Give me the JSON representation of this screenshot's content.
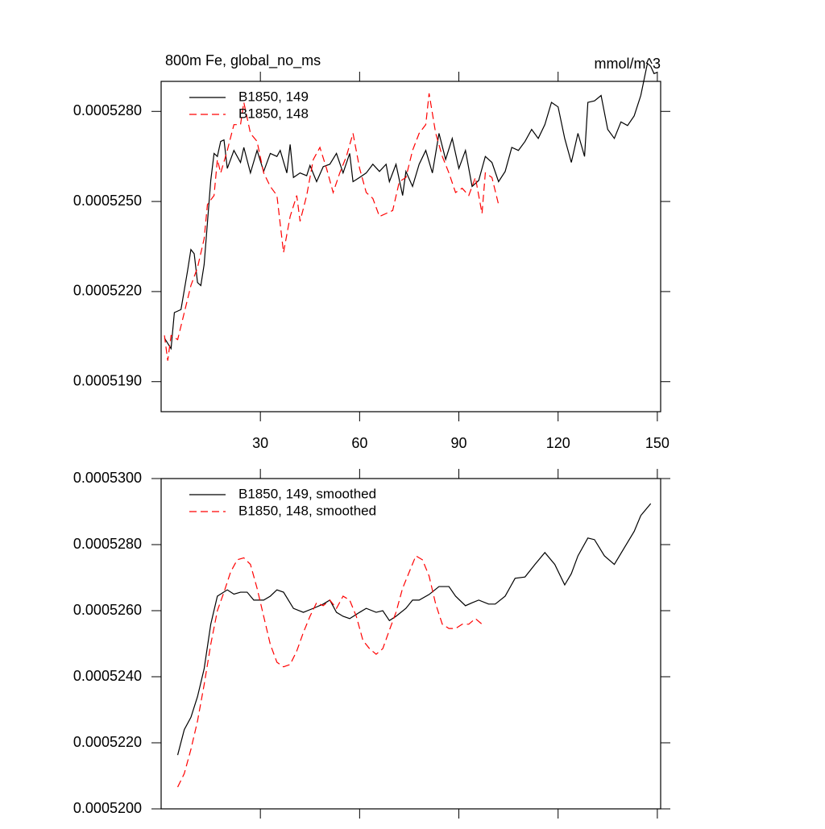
{
  "chart_data": [
    {
      "type": "line",
      "title": "800m Fe, global_no_ms",
      "right_title": "mmol/m^3",
      "xlim": [
        0,
        151
      ],
      "xticks": [
        30,
        60,
        90,
        120,
        150
      ],
      "xtick_labels": true,
      "ylim": [
        0.000518,
        0.000529
      ],
      "yticks": [
        {
          "value": 0.000519,
          "label": "0.0005190"
        },
        {
          "value": 0.000522,
          "label": "0.0005220"
        },
        {
          "value": 0.000525,
          "label": "0.0005250"
        },
        {
          "value": 0.000528,
          "label": "0.0005280"
        }
      ],
      "legend": "upper left",
      "series": [
        {
          "name": "B1850, 149",
          "color": "#000000",
          "dash": "solid",
          "x": [
            1,
            3,
            4,
            6,
            8,
            9,
            10,
            11,
            12,
            13,
            15,
            16,
            17,
            18,
            19,
            20,
            21,
            22,
            24,
            25,
            27,
            29,
            31,
            33,
            35,
            36,
            38,
            39,
            40,
            42,
            44,
            45,
            47,
            49,
            51,
            53,
            55,
            57,
            58,
            60,
            62,
            64,
            66,
            68,
            69,
            71,
            73,
            74,
            76,
            78,
            80,
            82,
            84,
            86,
            88,
            90,
            92,
            94,
            96,
            98,
            100,
            102,
            104,
            106,
            108,
            110,
            112,
            114,
            116,
            118,
            120,
            122,
            124,
            126,
            128,
            129,
            131,
            133,
            135,
            137,
            139,
            141,
            143,
            145,
            147,
            148,
            149,
            150
          ],
          "values": [
            0.00052045,
            0.0005201,
            0.0005213,
            0.0005214,
            0.0005227,
            0.0005234,
            0.00052326,
            0.0005223,
            0.0005222,
            0.0005229,
            0.0005257,
            0.0005266,
            0.0005265,
            0.000527,
            0.00052705,
            0.0005261,
            0.0005264,
            0.0005267,
            0.0005263,
            0.0005268,
            0.00052595,
            0.0005267,
            0.000526,
            0.0005266,
            0.0005265,
            0.0005267,
            0.00052595,
            0.0005269,
            0.0005258,
            0.00052595,
            0.00052586,
            0.0005262,
            0.00052566,
            0.00052616,
            0.00052624,
            0.0005266,
            0.00052595,
            0.0005266,
            0.00052566,
            0.0005258,
            0.00052595,
            0.00052624,
            0.000526,
            0.00052624,
            0.00052566,
            0.00052624,
            0.0005252,
            0.000526,
            0.0005255,
            0.00052624,
            0.0005267,
            0.00052595,
            0.00052727,
            0.0005264,
            0.0005271,
            0.0005261,
            0.0005267,
            0.0005255,
            0.0005257,
            0.0005265,
            0.0005263,
            0.00052566,
            0.000526,
            0.0005268,
            0.0005267,
            0.000527,
            0.0005274,
            0.0005271,
            0.00052756,
            0.0005283,
            0.00052815,
            0.0005271,
            0.0005263,
            0.00052727,
            0.0005265,
            0.0005283,
            0.00052835,
            0.00052853,
            0.0005274,
            0.0005271,
            0.00052765,
            0.00052753,
            0.00052785,
            0.00052853,
            0.0005296,
            0.0005295,
            0.00052926,
            0.0005293
          ]
        },
        {
          "name": "B1850, 148",
          "color": "#ff0000",
          "dash": "dashed",
          "x": [
            1,
            2,
            3,
            5,
            7,
            9,
            11,
            13,
            14,
            16,
            17,
            18,
            20,
            22,
            24,
            25,
            27,
            29,
            31,
            33,
            35,
            37,
            39,
            41,
            42,
            44,
            46,
            48,
            50,
            52,
            54,
            56,
            58,
            60,
            62,
            64,
            66,
            68,
            70,
            72,
            74,
            76,
            78,
            80,
            81,
            83,
            85,
            87,
            89,
            91,
            93,
            95,
            97,
            98,
            100,
            102
          ],
          "values": [
            0.00052054,
            0.0005197,
            0.00052054,
            0.0005204,
            0.0005213,
            0.0005222,
            0.0005228,
            0.00052376,
            0.0005249,
            0.0005252,
            0.0005264,
            0.00052595,
            0.0005267,
            0.00052756,
            0.00052756,
            0.0005283,
            0.00052727,
            0.000527,
            0.00052595,
            0.0005255,
            0.0005252,
            0.0005233,
            0.0005245,
            0.0005252,
            0.00052434,
            0.0005252,
            0.0005264,
            0.0005268,
            0.0005261,
            0.0005253,
            0.00052595,
            0.0005265,
            0.00052727,
            0.0005261,
            0.0005253,
            0.0005251,
            0.0005245,
            0.0005246,
            0.0005247,
            0.00052566,
            0.0005258,
            0.0005267,
            0.00052727,
            0.00052756,
            0.0005286,
            0.00052727,
            0.0005265,
            0.00052595,
            0.0005253,
            0.00052544,
            0.0005252,
            0.0005258,
            0.0005246,
            0.00052595,
            0.0005258,
            0.0005249
          ]
        }
      ]
    },
    {
      "type": "line",
      "xlim": [
        0,
        151
      ],
      "xticks": [
        30,
        60,
        90,
        120,
        150
      ],
      "xtick_labels": false,
      "ylim": [
        0.00052,
        0.00053
      ],
      "yticks": [
        {
          "value": 0.00052,
          "label": "0.0005200"
        },
        {
          "value": 0.000522,
          "label": "0.0005220"
        },
        {
          "value": 0.000524,
          "label": "0.0005240"
        },
        {
          "value": 0.000526,
          "label": "0.0005260"
        },
        {
          "value": 0.000528,
          "label": "0.0005280"
        },
        {
          "value": 0.00053,
          "label": "0.0005300"
        }
      ],
      "legend": "upper left",
      "series": [
        {
          "name": "B1850, 149, smoothed",
          "color": "#000000",
          "dash": "solid",
          "x": [
            5,
            7,
            9,
            11,
            13,
            15,
            17,
            20,
            22,
            24,
            26,
            28,
            31,
            33,
            35,
            37,
            40,
            43,
            46,
            49,
            51,
            53,
            55,
            57,
            60,
            62,
            65,
            67,
            69,
            71,
            74,
            76,
            78,
            81,
            84,
            87,
            89,
            92,
            94,
            96,
            99,
            101,
            104,
            107,
            110,
            113,
            116,
            119,
            122,
            124,
            126,
            129,
            131,
            134,
            137,
            140,
            143,
            145,
            148
          ],
          "values": [
            0.00052163,
            0.0005224,
            0.00052277,
            0.0005234,
            0.00052424,
            0.00052559,
            0.00052644,
            0.00052663,
            0.0005265,
            0.00052656,
            0.00052656,
            0.00052632,
            0.00052632,
            0.00052644,
            0.00052663,
            0.00052656,
            0.00052607,
            0.00052595,
            0.00052607,
            0.0005262,
            0.00052632,
            0.00052595,
            0.00052583,
            0.00052576,
            0.00052595,
            0.00052607,
            0.00052595,
            0.000526,
            0.0005257,
            0.00052583,
            0.00052607,
            0.00052632,
            0.00052632,
            0.00052649,
            0.00052673,
            0.00052673,
            0.00052644,
            0.00052615,
            0.00052624,
            0.00052632,
            0.0005262,
            0.0005262,
            0.00052644,
            0.00052698,
            0.00052702,
            0.0005274,
            0.00052776,
            0.0005274,
            0.00052678,
            0.00052712,
            0.00052766,
            0.0005282,
            0.00052815,
            0.00052766,
            0.0005274,
            0.0005279,
            0.0005284,
            0.00052888,
            0.00052924
          ]
        },
        {
          "name": "B1850, 148, smoothed",
          "color": "#ff0000",
          "dash": "dashed",
          "x": [
            5,
            7,
            9,
            11,
            13,
            15,
            17,
            19,
            21,
            23,
            25,
            27,
            29,
            31,
            33,
            35,
            37,
            39,
            41,
            43,
            45,
            47,
            49,
            51,
            53,
            55,
            57,
            59,
            61,
            63,
            65,
            67,
            69,
            71,
            73,
            75,
            77,
            79,
            81,
            83,
            85,
            87,
            89,
            91,
            93,
            95,
            97
          ],
          "values": [
            0.00052066,
            0.00052107,
            0.0005218,
            0.00052266,
            0.00052376,
            0.00052498,
            0.000526,
            0.00052656,
            0.00052717,
            0.00052754,
            0.0005276,
            0.0005274,
            0.00052668,
            0.00052583,
            0.00052498,
            0.00052444,
            0.0005243,
            0.00052437,
            0.00052478,
            0.00052534,
            0.00052583,
            0.00052624,
            0.00052615,
            0.00052632,
            0.00052607,
            0.00052644,
            0.00052632,
            0.00052583,
            0.0005251,
            0.00052485,
            0.00052468,
            0.00052485,
            0.00052541,
            0.00052595,
            0.00052668,
            0.00052717,
            0.00052766,
            0.00052754,
            0.00052705,
            0.0005262,
            0.00052559,
            0.00052546,
            0.00052546,
            0.00052559,
            0.00052559,
            0.00052576,
            0.00052559
          ]
        }
      ]
    }
  ]
}
